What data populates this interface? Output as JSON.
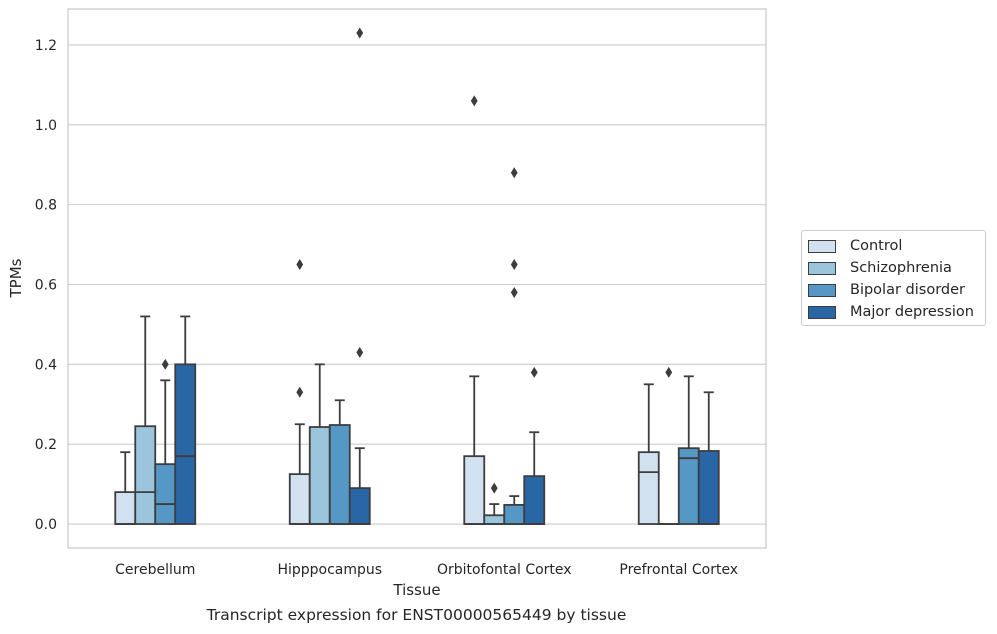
{
  "caption": "Transcript expression for ENST00000565449 by tissue",
  "chart_data": {
    "type": "boxplot",
    "title": "",
    "xlabel": "Tissue",
    "ylabel": "TPMs",
    "ylim": [
      -0.06,
      1.29
    ],
    "yticks": [
      "0.0",
      "0.2",
      "0.4",
      "0.6",
      "0.8",
      "1.0",
      "1.2"
    ],
    "grid": true,
    "legend_position": "right",
    "categories": [
      "Cerebellum",
      "Hipppocampus",
      "Orbitofontal Cortex",
      "Prefrontal Cortex"
    ],
    "series": [
      {
        "name": "Control",
        "color": "#d1e1f0",
        "boxes": [
          {
            "min": 0.0,
            "q1": 0.0,
            "median": 0.0,
            "q3": 0.08,
            "max": 0.18,
            "outliers": []
          },
          {
            "min": 0.0,
            "q1": 0.0,
            "median": 0.0,
            "q3": 0.125,
            "max": 0.25,
            "outliers": [
              0.33,
              0.65
            ]
          },
          {
            "min": 0.0,
            "q1": 0.0,
            "median": 0.0,
            "q3": 0.17,
            "max": 0.37,
            "outliers": [
              1.06
            ]
          },
          {
            "min": 0.0,
            "q1": 0.0,
            "median": 0.13,
            "q3": 0.18,
            "max": 0.35,
            "outliers": []
          }
        ]
      },
      {
        "name": "Schizophrenia",
        "color": "#9bc4dd",
        "boxes": [
          {
            "min": 0.0,
            "q1": 0.0,
            "median": 0.08,
            "q3": 0.245,
            "max": 0.52,
            "outliers": []
          },
          {
            "min": 0.0,
            "q1": 0.0,
            "median": 0.0,
            "q3": 0.243,
            "max": 0.4,
            "outliers": []
          },
          {
            "min": 0.0,
            "q1": 0.0,
            "median": 0.0,
            "q3": 0.022,
            "max": 0.05,
            "outliers": [
              0.09
            ]
          },
          {
            "min": 0.0,
            "q1": 0.0,
            "median": 0.0,
            "q3": 0.0,
            "max": 0.0,
            "outliers": [
              0.38
            ]
          }
        ]
      },
      {
        "name": "Bipolar disorder",
        "color": "#5598c6",
        "boxes": [
          {
            "min": 0.0,
            "q1": 0.0,
            "median": 0.05,
            "q3": 0.15,
            "max": 0.36,
            "outliers": [
              0.4
            ]
          },
          {
            "min": 0.0,
            "q1": 0.0,
            "median": 0.0,
            "q3": 0.248,
            "max": 0.31,
            "outliers": []
          },
          {
            "min": 0.0,
            "q1": 0.0,
            "median": 0.0,
            "q3": 0.048,
            "max": 0.07,
            "outliers": [
              0.58,
              0.65,
              0.88
            ]
          },
          {
            "min": 0.0,
            "q1": 0.0,
            "median": 0.165,
            "q3": 0.19,
            "max": 0.37,
            "outliers": []
          }
        ]
      },
      {
        "name": "Major depression",
        "color": "#2966a6",
        "boxes": [
          {
            "min": 0.0,
            "q1": 0.0,
            "median": 0.17,
            "q3": 0.4,
            "max": 0.52,
            "outliers": []
          },
          {
            "min": 0.0,
            "q1": 0.0,
            "median": 0.0,
            "q3": 0.09,
            "max": 0.19,
            "outliers": [
              0.43,
              1.23
            ]
          },
          {
            "min": 0.0,
            "q1": 0.0,
            "median": 0.0,
            "q3": 0.12,
            "max": 0.23,
            "outliers": [
              0.38
            ]
          },
          {
            "min": 0.0,
            "q1": 0.0,
            "median": 0.0,
            "q3": 0.183,
            "max": 0.33,
            "outliers": []
          }
        ]
      }
    ]
  }
}
